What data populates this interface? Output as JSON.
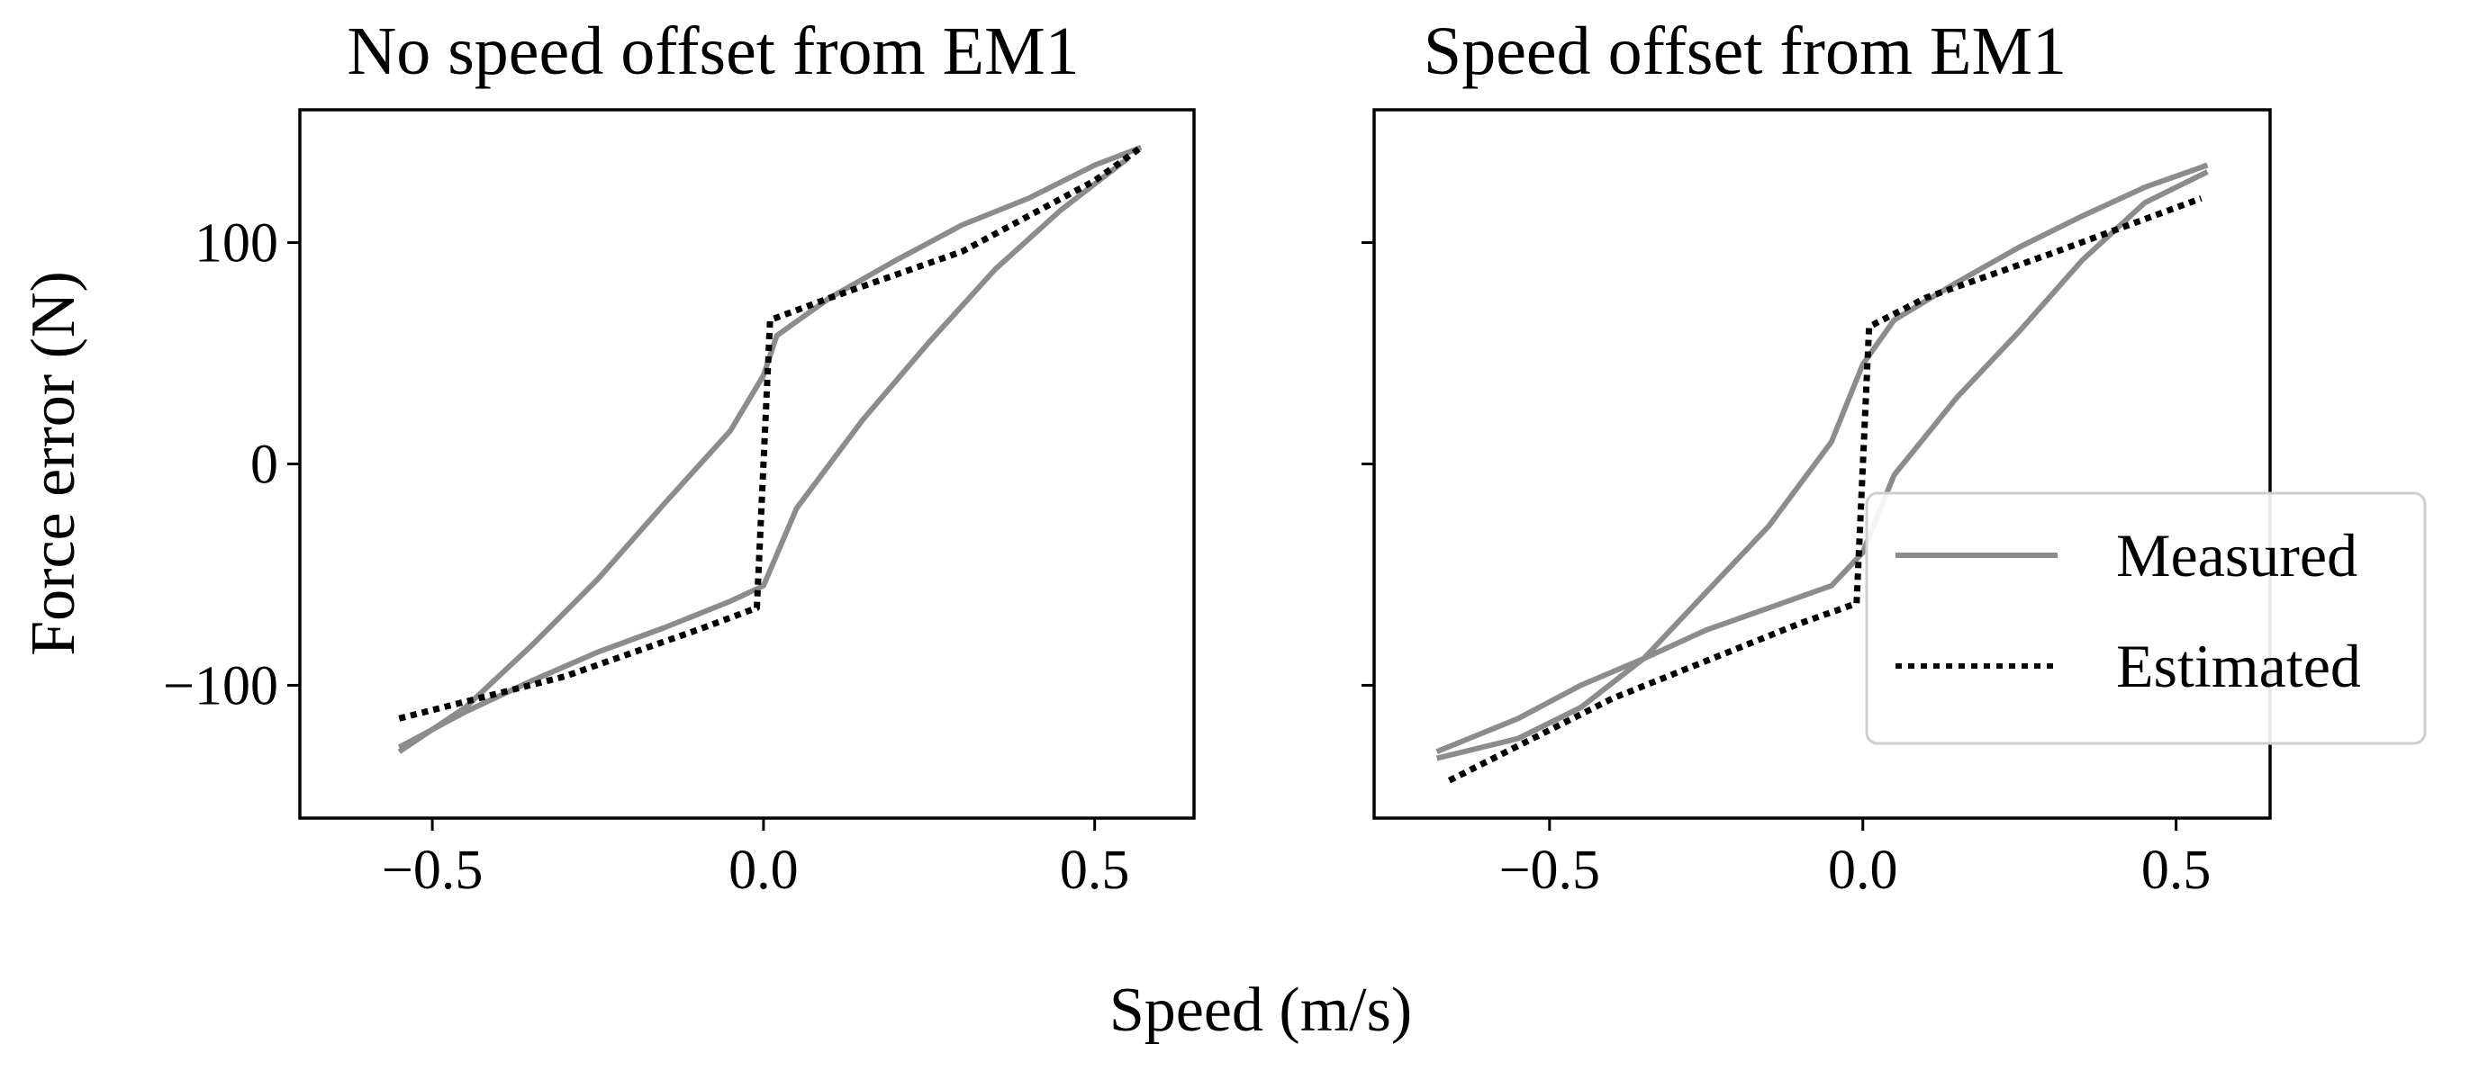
{
  "chart_data": {
    "type": "line",
    "shared_xlabel": "Speed (m/s)",
    "ylabel": "Force error (N)",
    "legend": {
      "placement": "right-center",
      "entries": [
        {
          "label": "Measured",
          "style": "solid",
          "color": "#8c8c8c"
        },
        {
          "label": "Estimated",
          "style": "dotted",
          "color": "#000000"
        }
      ]
    },
    "panels": [
      {
        "title": "No speed offset from EM1",
        "xlim": [
          -0.7,
          0.65
        ],
        "ylim": [
          -160,
          160
        ],
        "xticks": [
          -0.5,
          0.0,
          0.5
        ],
        "xtick_labels": [
          "−0.5",
          "0.0",
          "0.5"
        ],
        "yticks": [
          -100,
          0,
          100
        ],
        "ytick_labels": [
          "−100",
          "0",
          "100"
        ],
        "series": [
          {
            "name": "Measured",
            "color": "#8c8c8c",
            "style": "solid",
            "x": [
              -0.55,
              -0.45,
              -0.35,
              -0.25,
              -0.15,
              -0.05,
              0.0,
              0.02,
              0.1,
              0.2,
              0.3,
              0.4,
              0.5,
              0.57
            ],
            "y": [
              -130,
              -110,
              -82,
              -52,
              -18,
              15,
              40,
              58,
              75,
              92,
              108,
              120,
              135,
              143
            ]
          },
          {
            "name": "Measured",
            "color": "#8c8c8c",
            "style": "solid",
            "x": [
              -0.55,
              -0.45,
              -0.35,
              -0.25,
              -0.15,
              -0.05,
              0.0,
              0.05,
              0.15,
              0.25,
              0.35,
              0.45,
              0.55
            ],
            "y": [
              -128,
              -112,
              -98,
              -85,
              -74,
              -62,
              -55,
              -20,
              20,
              55,
              88,
              115,
              138
            ]
          },
          {
            "name": "Estimated",
            "color": "#000000",
            "style": "dotted",
            "x": [
              -0.55,
              -0.3,
              -0.1,
              -0.01,
              0.01,
              0.1,
              0.3,
              0.5,
              0.57
            ],
            "y": [
              -115,
              -96,
              -75,
              -65,
              65,
              75,
              96,
              128,
              143
            ]
          }
        ]
      },
      {
        "title": "Speed offset from EM1",
        "xlim": [
          -0.78,
          0.65
        ],
        "ylim": [
          -160,
          160
        ],
        "xticks": [
          -0.5,
          0.0,
          0.5
        ],
        "xtick_labels": [
          "−0.5",
          "0.0",
          "0.5"
        ],
        "yticks": [
          -100,
          0,
          100
        ],
        "ytick_labels": [
          "",
          "",
          ""
        ],
        "series": [
          {
            "name": "Measured",
            "color": "#8c8c8c",
            "style": "solid",
            "x": [
              -0.68,
              -0.55,
              -0.45,
              -0.35,
              -0.25,
              -0.15,
              -0.05,
              0.0,
              0.05,
              0.15,
              0.25,
              0.35,
              0.45,
              0.55
            ],
            "y": [
              -133,
              -124,
              -110,
              -88,
              -58,
              -28,
              10,
              45,
              65,
              82,
              98,
              112,
              125,
              135
            ]
          },
          {
            "name": "Measured",
            "color": "#8c8c8c",
            "style": "solid",
            "x": [
              -0.68,
              -0.55,
              -0.45,
              -0.35,
              -0.25,
              -0.15,
              -0.05,
              0.0,
              0.05,
              0.15,
              0.25,
              0.35,
              0.45,
              0.55
            ],
            "y": [
              -130,
              -115,
              -100,
              -88,
              -75,
              -65,
              -55,
              -40,
              -5,
              30,
              60,
              92,
              118,
              132
            ]
          },
          {
            "name": "Estimated",
            "color": "#000000",
            "style": "dotted",
            "x": [
              -0.66,
              -0.4,
              -0.1,
              -0.01,
              0.01,
              0.1,
              0.3,
              0.54
            ],
            "y": [
              -143,
              -106,
              -72,
              -63,
              62,
              75,
              95,
              120
            ]
          }
        ]
      }
    ]
  }
}
